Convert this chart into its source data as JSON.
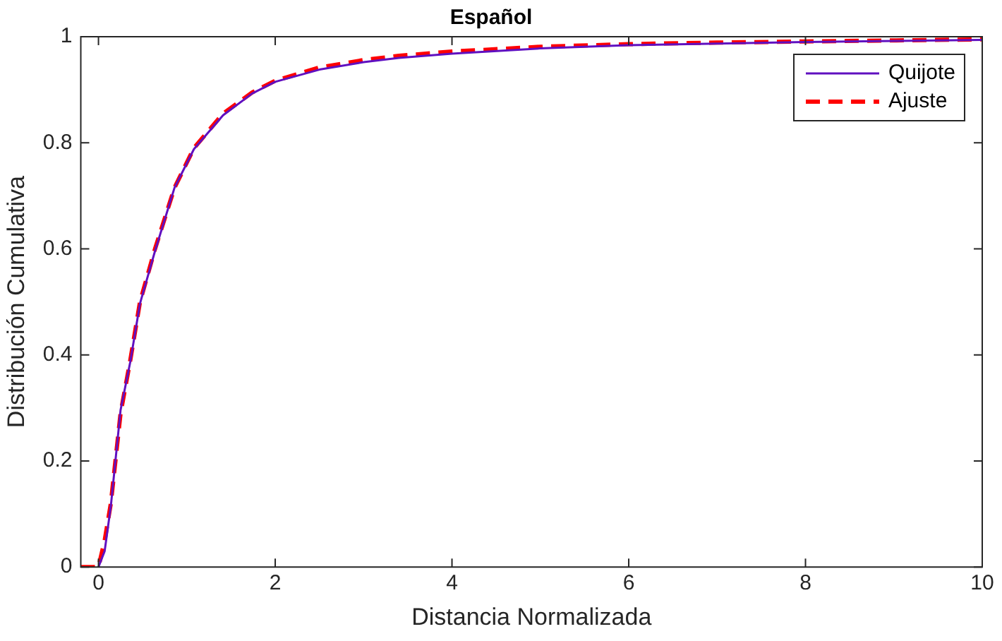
{
  "chart_data": {
    "type": "line",
    "title": "Español",
    "xlabel": "Distancia Normalizada",
    "ylabel": "Distribución Cumulativa",
    "xlim": [
      -0.2,
      10
    ],
    "ylim": [
      0,
      1
    ],
    "xticks": [
      0,
      2,
      4,
      6,
      8,
      10
    ],
    "yticks": [
      0,
      0.2,
      0.4,
      0.6,
      0.8,
      1
    ],
    "grid": false,
    "legend": "top right",
    "series": [
      {
        "name": "Quijote",
        "color": "#6010c0",
        "line_style": "solid",
        "x": [
          0,
          0.07,
          0.14,
          0.25,
          0.36,
          0.47,
          0.64,
          0.86,
          1.08,
          1.41,
          1.74,
          2.0,
          2.5,
          3.0,
          3.4,
          4.0,
          5.0,
          6.0,
          7.0,
          8.0,
          9.0,
          10.0
        ],
        "values": [
          0,
          0.03,
          0.115,
          0.296,
          0.387,
          0.497,
          0.596,
          0.715,
          0.788,
          0.852,
          0.893,
          0.915,
          0.938,
          0.952,
          0.96,
          0.968,
          0.978,
          0.984,
          0.987,
          0.99,
          0.992,
          0.994
        ]
      },
      {
        "name": "Ajuste",
        "color": "#ff0000",
        "line_style": "dashed",
        "x": [
          -0.2,
          0,
          0.07,
          0.14,
          0.25,
          0.36,
          0.47,
          0.64,
          0.86,
          1.08,
          1.41,
          1.74,
          2.0,
          2.5,
          3.0,
          3.4,
          4.0,
          5.0,
          6.0,
          7.0,
          8.0,
          9.0,
          10.0
        ],
        "values": [
          0,
          0,
          0.05,
          0.12,
          0.29,
          0.39,
          0.5,
          0.6,
          0.715,
          0.79,
          0.855,
          0.895,
          0.917,
          0.942,
          0.956,
          0.964,
          0.972,
          0.981,
          0.986,
          0.989,
          0.991,
          0.993,
          0.995
        ]
      }
    ]
  }
}
